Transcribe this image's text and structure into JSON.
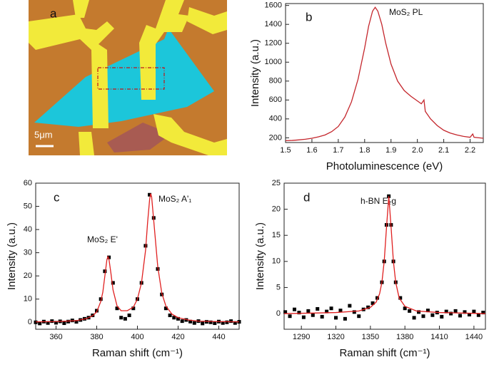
{
  "chart_data": [
    {
      "type": "image",
      "label": "a",
      "scale_label": "5μm"
    },
    {
      "type": "line",
      "label": "b",
      "annotations": [
        "MoS₂ PL"
      ],
      "xlabel": "Photoluminescence (eV)",
      "ylabel": "Intensity (a.u.)",
      "xlim": [
        1.5,
        2.25
      ],
      "xticks": [
        1.5,
        1.6,
        1.7,
        1.8,
        1.9,
        {
          "value": 2,
          "label": "2.0"
        },
        2.1,
        2.2
      ],
      "ylim": [
        150,
        1620
      ],
      "yticks": [
        200,
        400,
        600,
        800,
        1000,
        1200,
        1400,
        1600
      ],
      "series": [
        {
          "mode": "line",
          "color": "#c4262c",
          "x": [
            1.5,
            1.525,
            1.55,
            1.575,
            1.6,
            1.625,
            1.65,
            1.675,
            1.7,
            1.725,
            1.75,
            1.775,
            1.8,
            1.815,
            1.83,
            1.84,
            1.85,
            1.865,
            1.88,
            1.9,
            1.925,
            1.95,
            1.975,
            2.0,
            2.015,
            2.025,
            2.03,
            2.05,
            2.075,
            2.1,
            2.125,
            2.15,
            2.175,
            2.2,
            2.21,
            2.215,
            2.25
          ],
          "values": [
            170,
            172,
            178,
            185,
            195,
            210,
            230,
            265,
            320,
            420,
            580,
            820,
            1150,
            1380,
            1540,
            1580,
            1540,
            1400,
            1200,
            980,
            800,
            700,
            640,
            590,
            560,
            600,
            480,
            400,
            330,
            280,
            250,
            230,
            215,
            205,
            240,
            205,
            195
          ]
        }
      ]
    },
    {
      "type": "scatter",
      "label": "c",
      "annotations": [
        "MoS₂ E'",
        "MoS₂ A'₁"
      ],
      "xlabel": "Raman shift (cm⁻¹)",
      "ylabel": "Intensity (a.u.)",
      "xlim": [
        350,
        450
      ],
      "xticks": [
        360,
        380,
        400,
        420,
        440
      ],
      "ylim": [
        -3,
        60
      ],
      "yticks": [
        0,
        10,
        20,
        30,
        40,
        50,
        60
      ],
      "series": [
        {
          "mode": "markers",
          "color": "#000000",
          "x": [
            350,
            352,
            354,
            356,
            358,
            360,
            362,
            364,
            366,
            368,
            370,
            372,
            374,
            376,
            378,
            380,
            382,
            384,
            386,
            388,
            390,
            392,
            394,
            396,
            398,
            400,
            402,
            404,
            406,
            408,
            410,
            412,
            414,
            416,
            418,
            420,
            422,
            424,
            426,
            428,
            430,
            432,
            434,
            436,
            438,
            440,
            442,
            444,
            446,
            448,
            450
          ],
          "values": [
            0,
            -0.5,
            0.3,
            -0.3,
            0.5,
            -0.2,
            0.4,
            -0.4,
            0.3,
            0.8,
            0.2,
            1,
            1.5,
            2,
            3,
            5,
            10,
            22,
            28,
            17,
            6,
            2,
            1.5,
            3,
            6,
            10,
            17,
            33,
            55,
            45,
            23,
            12,
            6,
            3,
            2,
            1.5,
            0.5,
            1,
            0.3,
            -0.3,
            0.5,
            -0.5,
            0.2,
            0,
            -0.4,
            0.3,
            -0.3,
            0,
            0.5,
            -0.3,
            0.2
          ]
        },
        {
          "mode": "line",
          "color": "#e02020",
          "x": [
            350,
            360,
            370,
            375,
            378,
            380,
            382,
            383,
            384,
            385,
            385.5,
            386,
            387,
            388,
            390,
            392,
            395,
            398,
            400,
            402,
            404,
            405,
            406,
            406.5,
            407,
            408,
            410,
            412,
            414,
            417,
            420,
            425,
            430,
            440,
            450
          ],
          "values": [
            0.2,
            0.3,
            0.7,
            1.6,
            2.8,
            4.5,
            9,
            13,
            20,
            27,
            28.3,
            27.3,
            21,
            14,
            7,
            5,
            5,
            6.5,
            10,
            17,
            31,
            43,
            53,
            55.5,
            54,
            44,
            24,
            12.5,
            7,
            3.5,
            2,
            1,
            0.5,
            0.3,
            0.2
          ]
        }
      ]
    },
    {
      "type": "scatter",
      "label": "d",
      "annotations": [
        "h-BN E₂g"
      ],
      "xlabel": "Raman shift (cm⁻¹)",
      "ylabel": "Intensity (a.u.)",
      "xlim": [
        1275,
        1450
      ],
      "xticks": [
        1290,
        1320,
        1350,
        1380,
        1410,
        1440
      ],
      "ylim": [
        -3,
        25
      ],
      "yticks": [
        0,
        5,
        10,
        15,
        20,
        25
      ],
      "series": [
        {
          "mode": "markers",
          "color": "#000000",
          "x": [
            1276,
            1280,
            1284,
            1288,
            1292,
            1296,
            1300,
            1304,
            1308,
            1312,
            1316,
            1320,
            1324,
            1328,
            1332,
            1336,
            1340,
            1344,
            1348,
            1352,
            1356,
            1360,
            1362,
            1364,
            1366,
            1368,
            1370,
            1372,
            1376,
            1380,
            1384,
            1388,
            1392,
            1396,
            1400,
            1404,
            1408,
            1412,
            1416,
            1420,
            1424,
            1428,
            1432,
            1436,
            1440,
            1444,
            1448
          ],
          "values": [
            0.3,
            -0.5,
            0.8,
            0.2,
            -0.7,
            0.5,
            -0.3,
            0.9,
            -0.6,
            0.4,
            1,
            -0.8,
            0.6,
            -1,
            1.5,
            0.3,
            -0.5,
            0.8,
            1.2,
            2,
            3,
            6,
            10,
            17,
            22.5,
            17,
            10,
            6,
            3,
            1,
            0.5,
            -0.8,
            0.3,
            -0.5,
            0.6,
            -0.3,
            0.2,
            -0.6,
            0.4,
            0,
            0.5,
            -0.4,
            0.3,
            -0.2,
            0.4,
            -0.3,
            0.2
          ]
        },
        {
          "mode": "line",
          "color": "#e02020",
          "x": [
            1275,
            1300,
            1320,
            1340,
            1350,
            1355,
            1358,
            1360,
            1362,
            1364,
            1366,
            1368,
            1370,
            1372,
            1375,
            1380,
            1390,
            1410,
            1430,
            1450
          ],
          "values": [
            0,
            0.1,
            0.2,
            0.5,
            1.2,
            2.2,
            3.8,
            6,
            10,
            16.5,
            22.5,
            16.5,
            10,
            6,
            3,
            1.4,
            0.5,
            0.2,
            0.1,
            0
          ]
        }
      ]
    }
  ]
}
